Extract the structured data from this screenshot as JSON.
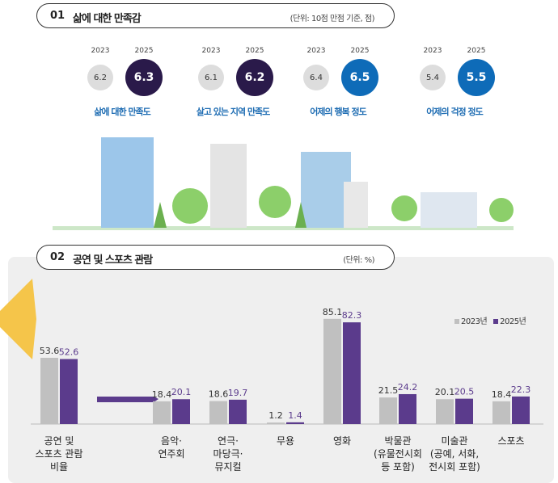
{
  "section1": {
    "num": "01",
    "title": "삶에 대한 만족감",
    "unit": "(단위: 10점 만점 기준, 점)",
    "groups": [
      {
        "label": "삶에 대한 만족도",
        "y2023": "2023",
        "y2025": "2025",
        "v2023": "6.2",
        "v2025": "6.3",
        "color": "#2a1a4a"
      },
      {
        "label": "살고 있는 지역 만족도",
        "y2023": "2023",
        "y2025": "2025",
        "v2023": "6.1",
        "v2025": "6.2",
        "color": "#2a1a4a"
      },
      {
        "label": "어제의 행복 정도",
        "y2023": "2023",
        "y2025": "2025",
        "v2023": "6.4",
        "v2025": "6.5",
        "color": "#0e6bb8"
      },
      {
        "label": "어제의 걱정 정도",
        "y2023": "2023",
        "y2025": "2025",
        "v2023": "5.4",
        "v2025": "5.5",
        "color": "#0e6bb8"
      }
    ]
  },
  "section2": {
    "num": "02",
    "title": "공연 및 스포츠 관람",
    "unit": "(단위: %)"
  },
  "chart_data": {
    "type": "bar",
    "unit": "%",
    "categories": [
      "공연 및\n스포츠 관람\n비율",
      "음악·\n연주회",
      "연극·\n마당극·\n뮤지컬",
      "무용",
      "영화",
      "박물관\n(유물전시회\n등 포함)",
      "미술관\n(공예, 서화,\n전시회 포함)",
      "스포츠"
    ],
    "series": [
      {
        "name": "2023년",
        "color": "#c0c0c0",
        "values": [
          53.6,
          18.4,
          18.6,
          1.2,
          85.1,
          21.5,
          20.1,
          18.4
        ]
      },
      {
        "name": "2025년",
        "color": "#5b3b8c",
        "values": [
          52.6,
          20.1,
          19.7,
          1.4,
          82.3,
          24.2,
          20.5,
          22.3
        ]
      }
    ],
    "legend": "top-right"
  }
}
